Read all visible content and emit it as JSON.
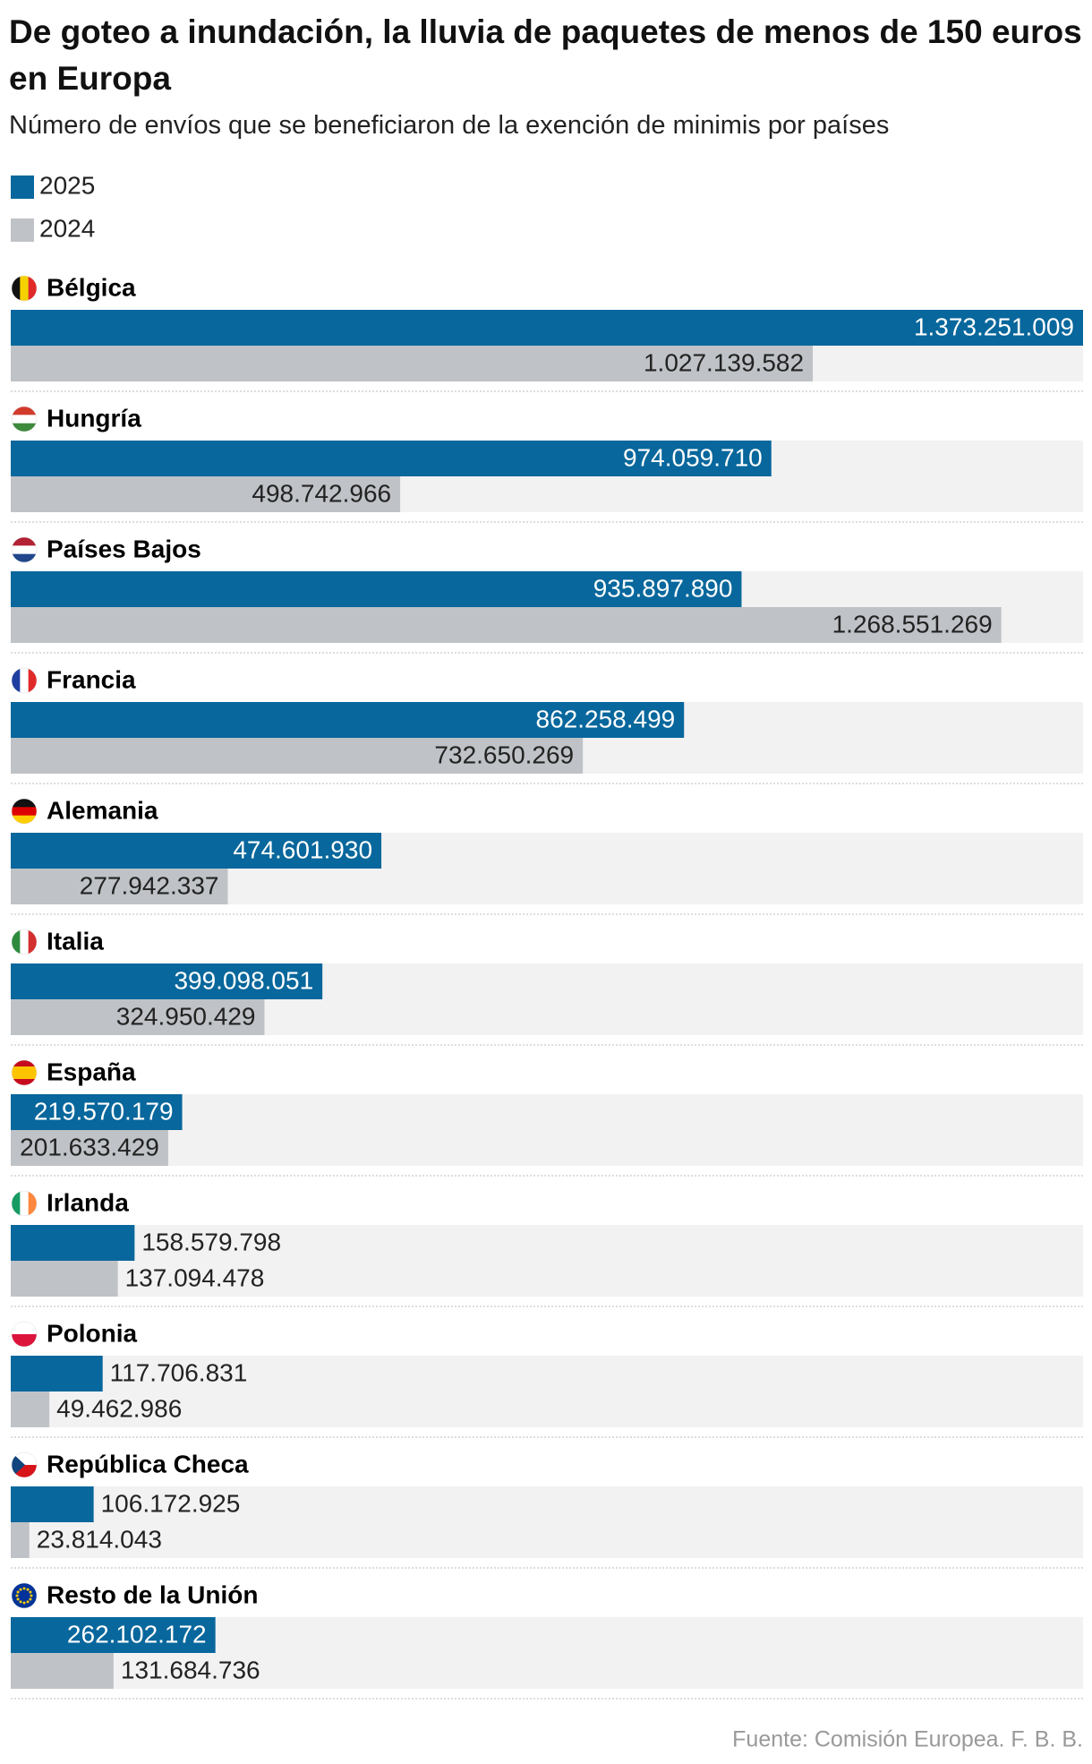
{
  "chart_data": {
    "type": "bar",
    "orientation": "horizontal",
    "title": "De goteo a inundación, la lluvia de paquetes de menos de 150 euros en Europa",
    "subtitle": "Número de envíos que se beneficiaron de la exención de minimis por países",
    "source": "Fuente: Comisión Europea. F. B. B.",
    "categories": [
      "Bélgica",
      "Hungría",
      "Países Bajos",
      "Francia",
      "Alemania",
      "Italia",
      "España",
      "Irlanda",
      "Polonia",
      "República Checa",
      "Resto de la Unión"
    ],
    "xlim": [
      0,
      1373251009
    ],
    "series": [
      {
        "name": "2025",
        "color": "#08679c",
        "values": [
          1373251009,
          974059710,
          935897890,
          862258499,
          474601930,
          399098051,
          219570179,
          158579798,
          117706831,
          106172925,
          262102172
        ],
        "value_labels": [
          "1.373.251.009",
          "974.059.710",
          "935.897.890",
          "862.258.499",
          "474.601.930",
          "399.098.051",
          "219.570.179",
          "158.579.798",
          "117.706.831",
          "106.172.925",
          "262.102.172"
        ]
      },
      {
        "name": "2024",
        "color": "#bfc2c6",
        "values": [
          1027139582,
          498742966,
          1268551269,
          732650269,
          277942337,
          324950429,
          201633429,
          137094478,
          49462986,
          23814043,
          131684736
        ],
        "value_labels": [
          "1.027.139.582",
          "498.742.966",
          "1.268.551.269",
          "732.650.269",
          "277.942.337",
          "324.950.429",
          "201.633.429",
          "137.094.478",
          "49.462.986",
          "23.814.043",
          "131.684.736"
        ]
      }
    ]
  }
}
